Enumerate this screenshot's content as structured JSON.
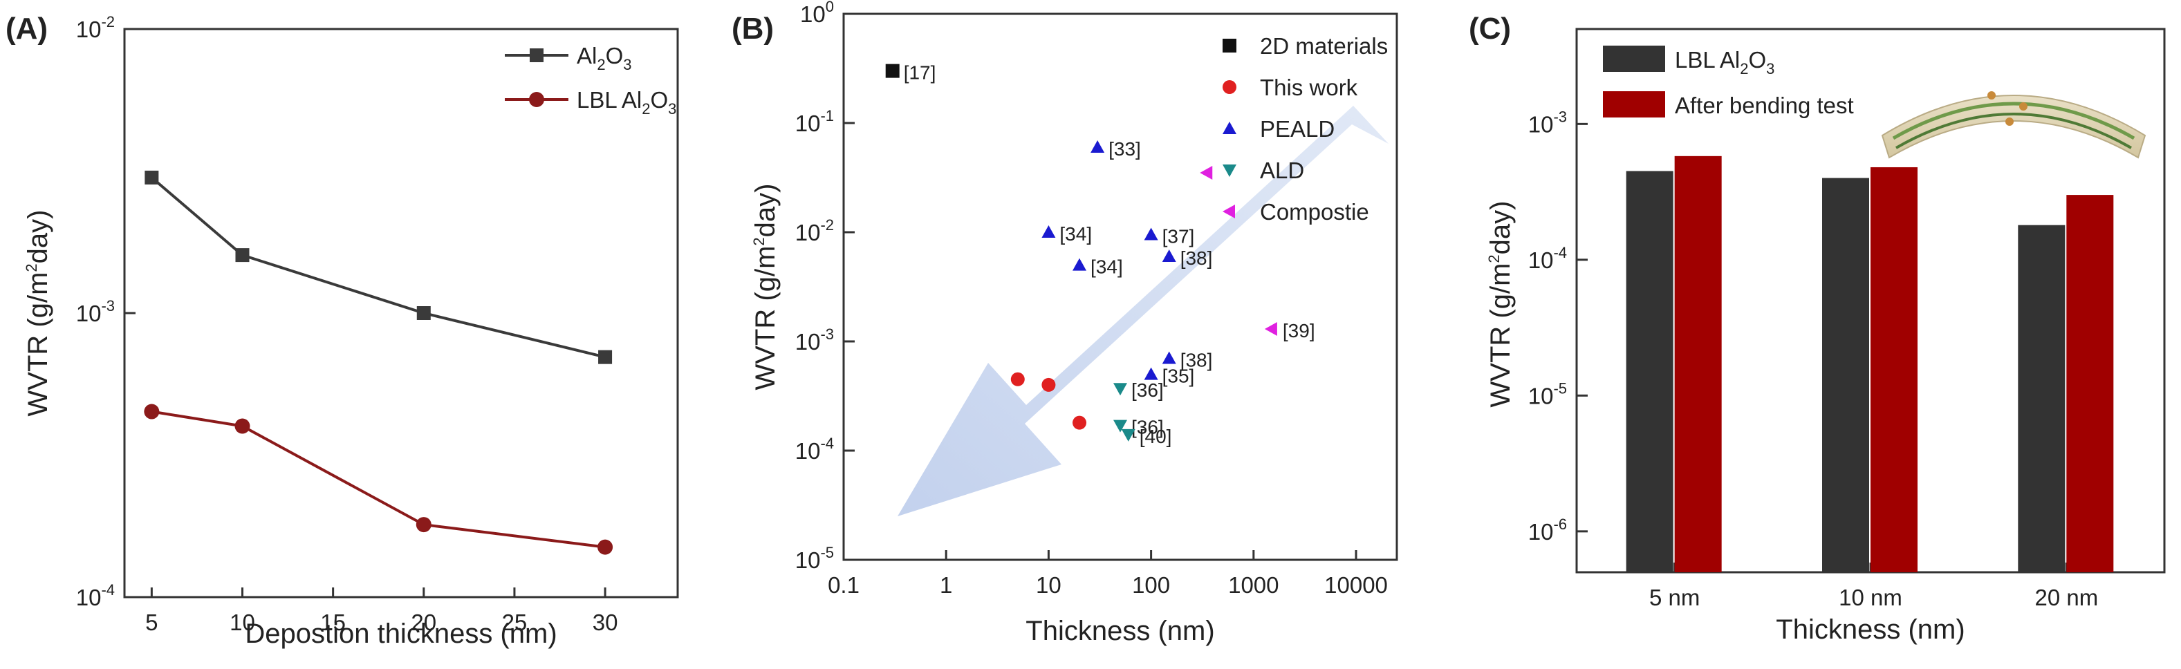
{
  "chart_data": [
    {
      "panel": "(A)",
      "type": "line",
      "xlabel": "Depostion thickness (nm)",
      "ylabel_main": "WVTR (g/m",
      "ylabel_sup": "2",
      "ylabel_tail": "day)",
      "x_ticks": [
        "5",
        "10",
        "15",
        "20",
        "25",
        "30"
      ],
      "y_ticks": [
        {
          "base": "10",
          "exp": "-2"
        },
        {
          "base": "10",
          "exp": "-3"
        },
        {
          "base": "10",
          "exp": "-4"
        }
      ],
      "xlim": [
        3.5,
        34
      ],
      "ylim": [
        0.0001,
        0.01
      ],
      "x": [
        5,
        10,
        20,
        30
      ],
      "series": [
        {
          "name": "Al2O3",
          "legend_parts": [
            "Al",
            "2",
            "O",
            "3"
          ],
          "color": "#3a3a3a",
          "marker": "square",
          "values": [
            0.003,
            0.0016,
            0.001,
            0.0007
          ]
        },
        {
          "name": "LBL Al2O3",
          "legend_parts": [
            "LBL Al",
            "2",
            "O",
            "3"
          ],
          "color": "#8b1a1a",
          "marker": "circle",
          "values": [
            0.00045,
            0.0004,
            0.00018,
            0.00015
          ]
        }
      ]
    },
    {
      "panel": "(B)",
      "type": "scatter",
      "xlabel": "Thickness (nm)",
      "ylabel_main": "WVTR (g/m",
      "ylabel_sup": "2",
      "ylabel_tail": "day)",
      "x_ticks": [
        "0.1",
        "1",
        "10",
        "100",
        "1000",
        "10000"
      ],
      "y_ticks": [
        {
          "base": "10",
          "exp": "0"
        },
        {
          "base": "10",
          "exp": "-1"
        },
        {
          "base": "10",
          "exp": "-2"
        },
        {
          "base": "10",
          "exp": "-3"
        },
        {
          "base": "10",
          "exp": "-4"
        },
        {
          "base": "10",
          "exp": "-5"
        }
      ],
      "xlim": [
        0.1,
        25000
      ],
      "ylim": [
        1e-05,
        1
      ],
      "series": [
        {
          "name": "2D materials",
          "color": "#111111",
          "marker": "square",
          "points": [
            {
              "x": 0.3,
              "y": 0.3,
              "label": "[17]"
            }
          ]
        },
        {
          "name": "This work",
          "color": "#e02020",
          "marker": "circle",
          "points": [
            {
              "x": 5,
              "y": 0.00045
            },
            {
              "x": 10,
              "y": 0.0004
            },
            {
              "x": 20,
              "y": 0.00018
            }
          ]
        },
        {
          "name": "PEALD",
          "color": "#1a1ad0",
          "marker": "triangle-up",
          "points": [
            {
              "x": 30,
              "y": 0.06,
              "label": "[33]"
            },
            {
              "x": 10,
              "y": 0.01,
              "label": "[34]"
            },
            {
              "x": 20,
              "y": 0.005,
              "label": "[34]"
            },
            {
              "x": 100,
              "y": 0.0095,
              "label": "[37]"
            },
            {
              "x": 150,
              "y": 0.006,
              "label": "[38]"
            },
            {
              "x": 150,
              "y": 0.0007,
              "label": "[38]"
            },
            {
              "x": 100,
              "y": 0.0005,
              "label": "[35]"
            }
          ]
        },
        {
          "name": "ALD",
          "color": "#1a8a8a",
          "marker": "triangle-down",
          "points": [
            {
              "x": 50,
              "y": 0.00037,
              "label": "[36]"
            },
            {
              "x": 50,
              "y": 0.00017,
              "label": "[36]"
            },
            {
              "x": 60,
              "y": 0.00014,
              "label": "[40]"
            }
          ]
        },
        {
          "name": "Compostie",
          "color": "#e020e0",
          "marker": "triangle-left",
          "points": [
            {
              "x": 350,
              "y": 0.035
            },
            {
              "x": 1500,
              "y": 0.0013,
              "label": "[39]"
            }
          ]
        }
      ]
    },
    {
      "panel": "(C)",
      "type": "bar",
      "xlabel": "Thickness (nm)",
      "ylabel_main": "WVTR (g/m",
      "ylabel_sup": "2",
      "ylabel_tail": "day)",
      "categories": [
        "5 nm",
        "10 nm",
        "20 nm"
      ],
      "y_ticks": [
        {
          "base": "10",
          "exp": "-3"
        },
        {
          "base": "10",
          "exp": "-4"
        },
        {
          "base": "10",
          "exp": "-5"
        },
        {
          "base": "10",
          "exp": "-6"
        }
      ],
      "ylim": [
        5e-07,
        0.005
      ],
      "series": [
        {
          "name": "LBL Al2O3",
          "legend_parts": [
            "LBL Al",
            "2",
            "O",
            "3"
          ],
          "color": "#333333",
          "values": [
            0.00045,
            0.0004,
            0.00018
          ]
        },
        {
          "name": "After bending test",
          "legend_parts": [
            "After bending test",
            "",
            "",
            ""
          ],
          "color": "#a00000",
          "values": [
            0.00058,
            0.00048,
            0.0003
          ]
        }
      ]
    }
  ]
}
